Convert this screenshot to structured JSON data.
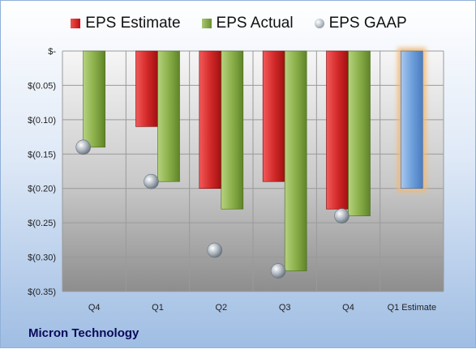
{
  "footer": {
    "title": "Micron Technology"
  },
  "chart_data": {
    "type": "bar",
    "categories": [
      "Q4",
      "Q1",
      "Q2",
      "Q3",
      "Q4",
      "Q1 Estimate"
    ],
    "series": [
      {
        "name": "EPS Estimate",
        "kind": "bar",
        "color": "#d42a2a",
        "values": [
          null,
          -0.11,
          -0.2,
          -0.19,
          -0.23,
          -0.2
        ]
      },
      {
        "name": "EPS Actual",
        "kind": "bar",
        "color": "#8bb04a",
        "values": [
          -0.14,
          -0.19,
          -0.23,
          -0.32,
          -0.24,
          null
        ]
      },
      {
        "name": "EPS GAAP",
        "kind": "marker",
        "color": "#9aa4ae",
        "values": [
          -0.14,
          -0.19,
          -0.29,
          -0.32,
          -0.24,
          null
        ]
      }
    ],
    "highlight": {
      "category_index": 5,
      "fill": "#6fa0dc",
      "glow": "#f3b872"
    },
    "ylim": [
      -0.35,
      0
    ],
    "yticks": [
      0,
      -0.05,
      -0.1,
      -0.15,
      -0.2,
      -0.25,
      -0.3,
      -0.35
    ],
    "ytick_labels": [
      "$-",
      "$(0.05)",
      "$(0.10)",
      "$(0.15)",
      "$(0.20)",
      "$(0.25)",
      "$(0.30)",
      "$(0.35)"
    ],
    "grid": true,
    "legend_position": "top"
  }
}
